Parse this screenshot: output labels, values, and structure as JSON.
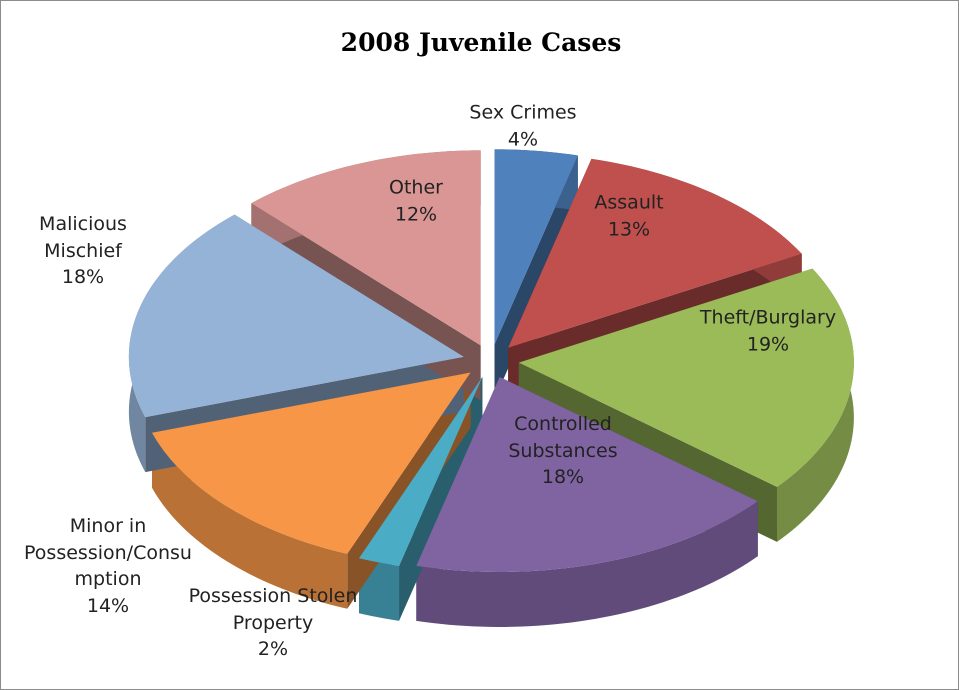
{
  "chart_data": {
    "type": "pie",
    "title": "2008 Juvenile Cases",
    "categories": [
      "Sex Crimes",
      "Assault",
      "Theft/Burglary",
      "Controlled Substances",
      "Possession Stolen Property",
      "Minor in Possession/Consumption",
      "Malicious Mischief",
      "Other"
    ],
    "values": [
      4,
      13,
      19,
      18,
      2,
      14,
      18,
      12
    ],
    "value_labels": [
      "4%",
      "13%",
      "19%",
      "18%",
      "2%",
      "14%",
      "18%",
      "12%"
    ],
    "colors": [
      "#4f81bd",
      "#c0504d",
      "#9bbb59",
      "#8064a2",
      "#4bacc6",
      "#f79646",
      "#95b3d7",
      "#d99694"
    ]
  }
}
